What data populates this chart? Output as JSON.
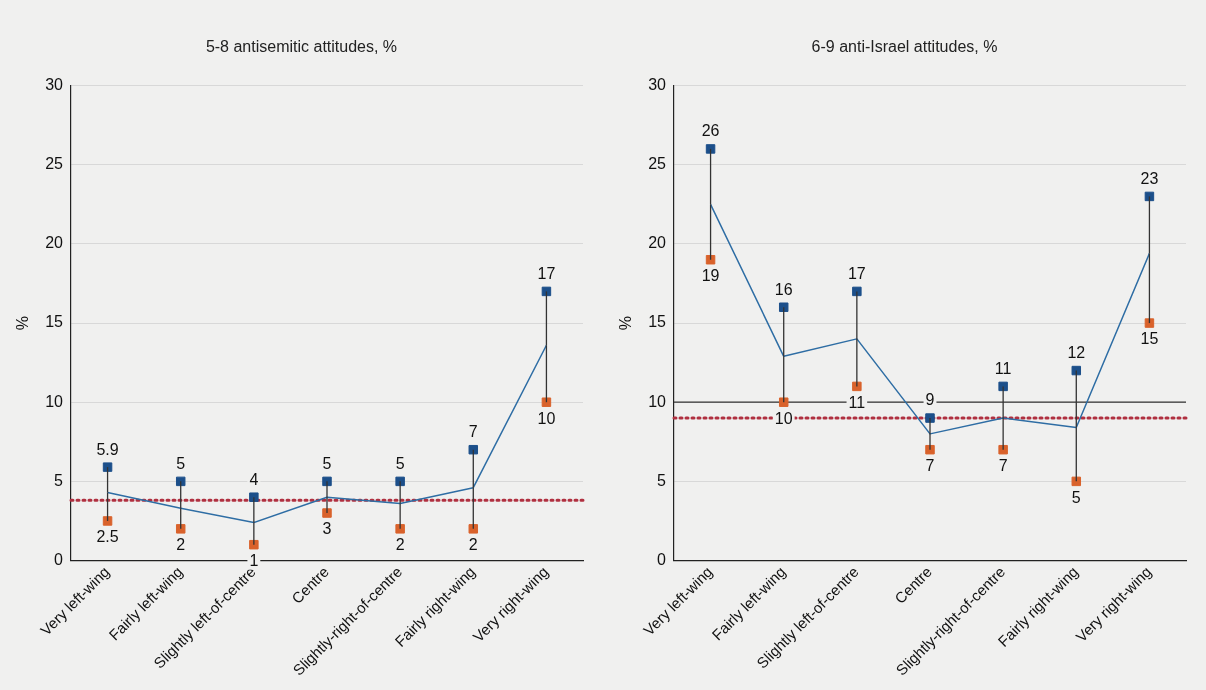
{
  "chart_data": [
    {
      "type": "line",
      "title": "5-8 antisemitic attitudes, %",
      "ylabel": "%",
      "categories": [
        "Very left-wing",
        "Fairly left-wing",
        "Slightly left-of-centre",
        "Centre",
        "Slightly-right-of-centre",
        "Fairly right-wing",
        "Very right-wing"
      ],
      "series": [
        {
          "type": "line",
          "color": "#2e6da4",
          "marker": "none",
          "values": [
            4.3,
            3.3,
            2.4,
            4,
            3.6,
            4.6,
            13.6
          ],
          "errors": [
            [
              2.5,
              5.9
            ],
            [
              2,
              5
            ],
            [
              1,
              4
            ],
            [
              3,
              5
            ],
            [
              2,
              5
            ],
            [
              2,
              7
            ],
            [
              10,
              17
            ]
          ]
        },
        {
          "type": "scatter",
          "color": "#1c4f8a",
          "x": [
            "Very left-wing",
            "Fairly left-wing",
            "Slightly left-of-centre",
            "Centre",
            "Slightly-right-of-centre",
            "Fairly right-wing",
            "Very right-wing"
          ],
          "values": [
            5.9,
            5,
            4,
            5,
            5,
            7,
            17
          ],
          "value_labels": [
            "5.9",
            "5",
            "4",
            "5",
            "5",
            "7",
            "17"
          ]
        },
        {
          "type": "scatter",
          "color": "#d9622b",
          "x": [
            "Very left-wing",
            "Fairly left-wing",
            "Slightly left-of-centre",
            "Centre",
            "Slightly-right-of-centre",
            "Fairly right-wing",
            "Very right-wing"
          ],
          "values": [
            2.5,
            2,
            1,
            3,
            2,
            2,
            10
          ],
          "value_labels": [
            "2.5",
            "2",
            "1",
            "3",
            "2",
            "2",
            "10"
          ]
        }
      ],
      "ylim": [
        0,
        30
      ],
      "yticks": [
        0,
        5,
        10,
        15,
        20,
        25,
        30
      ],
      "grid": "y",
      "legend": false,
      "marker": "square",
      "ref_lines": [
        {
          "axis": "y",
          "value": 3.8,
          "color": "#b03040",
          "line_style": "dotted"
        }
      ]
    },
    {
      "type": "line",
      "title": "6-9 anti-Israel attitudes, %",
      "ylabel": "%",
      "categories": [
        "Very left-wing",
        "Fairly left-wing",
        "Slightly left-of-centre",
        "Centre",
        "Slightly-right-of-centre",
        "Fairly right-wing",
        "Very right-wing"
      ],
      "series": [
        {
          "type": "line",
          "color": "#2e6da4",
          "marker": "none",
          "values": [
            22.5,
            12.9,
            14,
            8,
            9,
            8.4,
            19.4
          ],
          "errors": [
            [
              19,
              26
            ],
            [
              10,
              16
            ],
            [
              11,
              17
            ],
            [
              7,
              9
            ],
            [
              7,
              11
            ],
            [
              5,
              12
            ],
            [
              15,
              23
            ]
          ]
        },
        {
          "type": "scatter",
          "color": "#1c4f8a",
          "x": [
            "Very left-wing",
            "Fairly left-wing",
            "Slightly left-of-centre",
            "Centre",
            "Slightly-right-of-centre",
            "Fairly right-wing",
            "Very right-wing"
          ],
          "values": [
            26,
            16,
            17,
            9,
            11,
            12,
            23
          ],
          "value_labels": [
            "26",
            "16",
            "17",
            "9",
            "11",
            "12",
            "23"
          ]
        },
        {
          "type": "scatter",
          "color": "#d9622b",
          "x": [
            "Very left-wing",
            "Fairly left-wing",
            "Slightly left-of-centre",
            "Centre",
            "Slightly-right-of-centre",
            "Fairly right-wing",
            "Very right-wing"
          ],
          "values": [
            19,
            10,
            11,
            7,
            7,
            5,
            15
          ],
          "value_labels": [
            "19",
            "10",
            "11",
            "7",
            "7",
            "5",
            "15"
          ]
        }
      ],
      "ylim": [
        0,
        30
      ],
      "yticks": [
        0,
        5,
        10,
        15,
        20,
        25,
        30
      ],
      "grid": "y",
      "legend": false,
      "marker": "square",
      "ref_lines": [
        {
          "axis": "y",
          "value": 10,
          "color": "#333333",
          "line_style": "solid"
        },
        {
          "axis": "y",
          "value": 9,
          "color": "#b03040",
          "line_style": "dotted"
        }
      ]
    }
  ]
}
